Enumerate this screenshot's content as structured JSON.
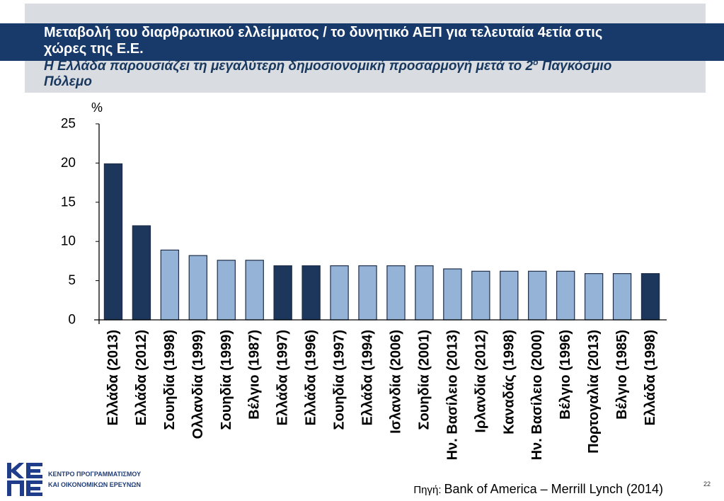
{
  "header": {
    "title_lines": [
      "Μεταβολή του διαρθρωτικού ελλείμματος / το δυνητικό ΑΕΠ για τελευταία 4ετία στις",
      "χώρες της Ε.Ε."
    ],
    "subtitle": {
      "pre": "Η Ελλάδα παρουσιάζει τη μεγαλύτερη δημοσιονομική προσαρμογή μετά το 2",
      "sup": "ο",
      "post": " Παγκόσμιο",
      "line2": "Πόλεμο"
    }
  },
  "colors": {
    "title_band": "#173a6a",
    "header_background": "#d9dce0",
    "subtitle_text": "#17375e",
    "bar_outline": "#1e2e48",
    "highlight_bar": "#1d375c",
    "other_bar": "#95b3d7",
    "logo": "#1f3d8a"
  },
  "chart_data": {
    "type": "bar",
    "categories": [
      "Ελλάδα (2013)",
      "Ελλάδα (2012)",
      "Σουηδία (1998)",
      "Ολλανδία (1999)",
      "Σουηδία (1999)",
      "Βέλγιο (1987)",
      "Ελλάδα (1997)",
      "Ελλάδα (1996)",
      "Σουηδία (1997)",
      "Ελλάδα (1994)",
      "Ισλανδία (2006)",
      "Σουηδία (2001)",
      "Ην. Βασίλειο (2013)",
      "Ιρλανδία (2012)",
      "Καναδάς (1998)",
      "Ην. Βασίλειο (2000)",
      "Βέλγιο (1996)",
      "Πορτογαλία (2013)",
      "Βέλγιο (1985)",
      "Ελλάδα (1998)"
    ],
    "values": [
      19.9,
      12.0,
      8.9,
      8.2,
      7.6,
      7.6,
      6.9,
      6.9,
      6.9,
      6.9,
      6.9,
      6.9,
      6.5,
      6.2,
      6.2,
      6.2,
      6.2,
      5.9,
      5.9,
      5.9
    ],
    "bar_colors": [
      "#1d375c",
      "#1d375c",
      "#95b3d7",
      "#95b3d7",
      "#95b3d7",
      "#95b3d7",
      "#1d375c",
      "#1d375c",
      "#95b3d7",
      "#95b3d7",
      "#95b3d7",
      "#95b3d7",
      "#95b3d7",
      "#95b3d7",
      "#95b3d7",
      "#95b3d7",
      "#95b3d7",
      "#95b3d7",
      "#95b3d7",
      "#1d375c"
    ],
    "xlabel": "",
    "ylabel": "%",
    "ylim": [
      0,
      25
    ],
    "yticks": [
      0,
      5,
      10,
      15,
      20,
      25
    ],
    "grid": false,
    "legend": "none"
  },
  "footer": {
    "logo": {
      "mark": "ΚΕΠΕ",
      "name_lines": [
        "ΚΕΝΤΡΟ ΠΡΟΓΡΑΜΜΑΤΙΣΜΟΥ",
        "ΚΑΙ ΟΙΚΟΝΟΜΙΚΩΝ ΕΡΕΥΝΩΝ"
      ]
    },
    "source_label": "Πηγή:",
    "source_text": "Bank of America – Merrill Lynch (2014)",
    "page_number": "22"
  }
}
